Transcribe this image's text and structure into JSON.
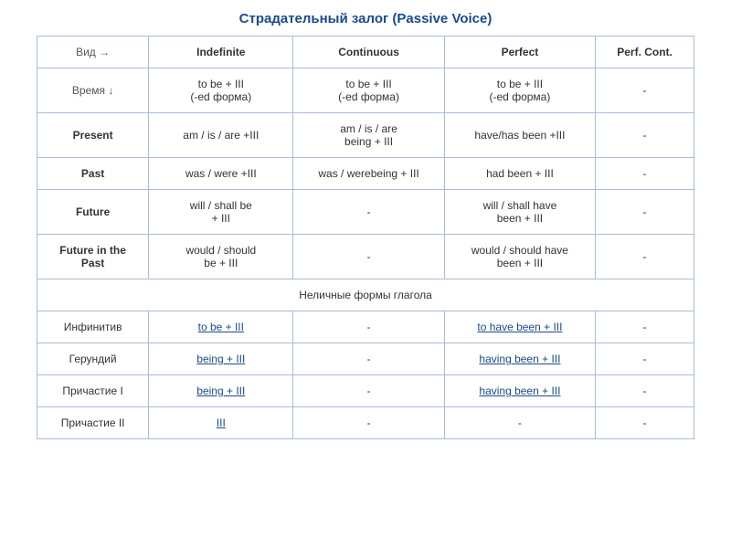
{
  "title": "Страдательный  залог  (Passive  Voice)",
  "headers": {
    "aspect": "Вид →",
    "indefinite": "Indefinite",
    "continuous": "Continuous",
    "perfect": "Perfect",
    "perfcont": "Perf. Cont."
  },
  "rows": {
    "time_label": "Время ↓",
    "formula": {
      "indefinite": "to be  +  III\n(-ed форма)",
      "continuous": "to be  +  III\n(-ed форма)",
      "perfect": "to be  +  III\n(-ed форма)",
      "perfcont": "-"
    },
    "present": {
      "label": "Present",
      "indefinite": "am / is / are +III",
      "continuous": "am / is / are\nbeing + III",
      "perfect": "have/has  been +III",
      "perfcont": "-"
    },
    "past": {
      "label": "Past",
      "indefinite": "was / were +III",
      "continuous": "was / werebeing + III",
      "perfect": "had been + III",
      "perfcont": "-"
    },
    "future": {
      "label": "Future",
      "indefinite": "will / shall  be\n+ III",
      "continuous": "-",
      "perfect": "will / shall have\nbeen + III",
      "perfcont": "-"
    },
    "futurepast": {
      "label": "Future in the\nPast",
      "indefinite": "would / should\nbe + III",
      "continuous": "-",
      "perfect": "would / should have\nbeen + III",
      "perfcont": "-"
    }
  },
  "nonfinite_header": "Неличные  формы  глагола",
  "nonfinite": {
    "infinitive": {
      "label": "Инфинитив",
      "indefinite": "to be + III",
      "continuous": "-",
      "perfect": "to have been + III",
      "perfcont": "-"
    },
    "gerund": {
      "label": "Герундий",
      "indefinite": "being + III",
      "continuous": "-",
      "perfect": "having been + III",
      "perfcont": "-"
    },
    "participle1": {
      "label": "Причастие I",
      "indefinite": "being + III",
      "continuous": "-",
      "perfect": "having been + III",
      "perfcont": "-"
    },
    "participle2": {
      "label": "Причастие II",
      "indefinite": "  III",
      "continuous": "-",
      "perfect": "-",
      "perfcont": "-"
    }
  }
}
